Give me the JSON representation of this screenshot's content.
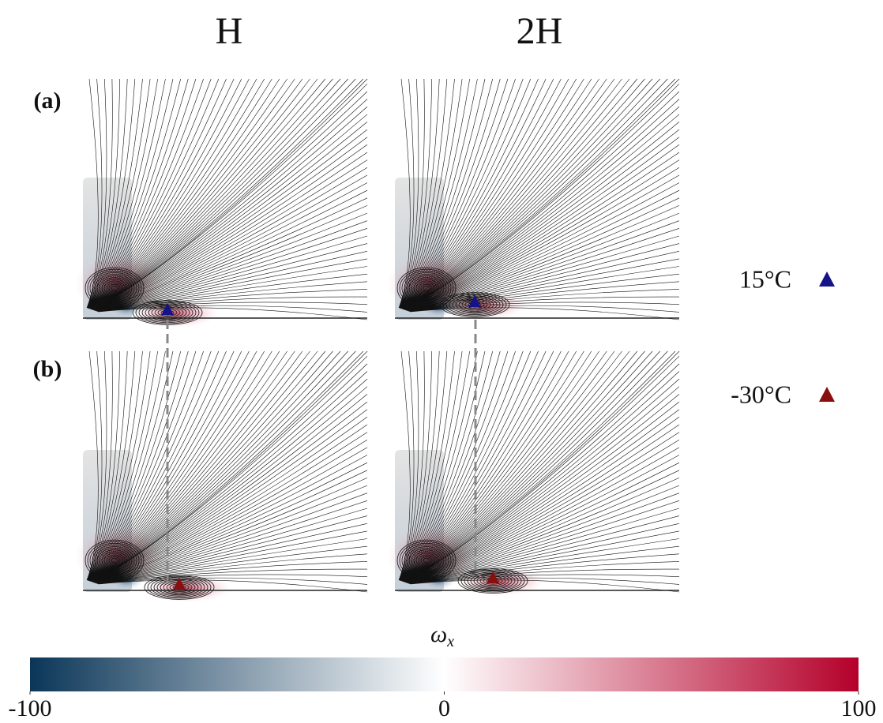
{
  "columns": [
    "H",
    "2H"
  ],
  "rows": [
    "(a)",
    "(b)"
  ],
  "legend": [
    {
      "label": "15°C",
      "color": "#141488"
    },
    {
      "label": "-30°C",
      "color": "#8a0e0e"
    }
  ],
  "colorbar": {
    "symbol": "ω",
    "subscript": "x",
    "range": [
      -100,
      100
    ],
    "ticks": [
      -100,
      0,
      100
    ],
    "colors": [
      "#0b3658",
      "#ffffff",
      "#b4002a"
    ]
  }
}
